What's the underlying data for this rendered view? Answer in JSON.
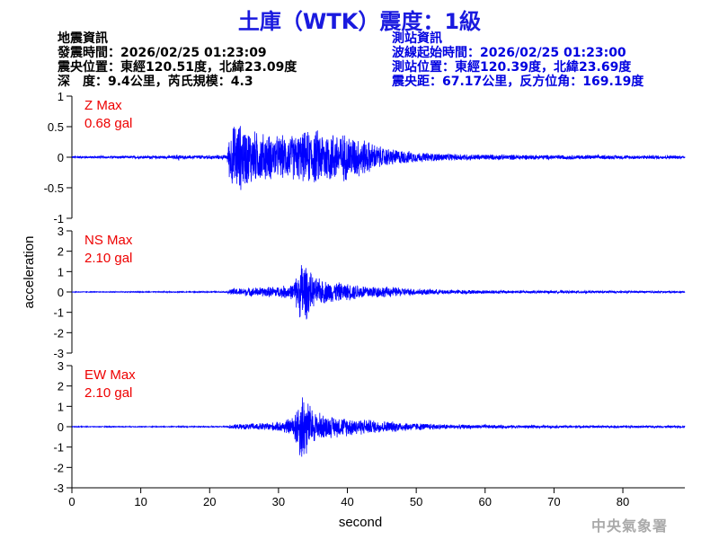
{
  "header": {
    "title": "土庫（WTK）震度：1級"
  },
  "event_info": {
    "heading": "地震資訊",
    "time": "發震時間：2026/02/25 01:23:09",
    "epicenter": "震央位置：東經120.51度，北緯23.09度",
    "depth_magnitude": "深　度：9.4公里，芮氏規模：4.3"
  },
  "station_info": {
    "heading": "測站資訊",
    "wave_start": "波線起始時間：2026/02/25 01:23:00",
    "location": "測站位置：東經120.39度，北緯23.69度",
    "distance": "震央距：67.17公里，反方位角：169.19度"
  },
  "credit": "中央氣象署",
  "colors": {
    "trace": "#0000ff",
    "max_label": "#e00000",
    "title": "#1a1adf"
  },
  "chart_data": {
    "type": "line",
    "xlabel": "second",
    "ylabel": "acceleration",
    "xlim": [
      0,
      89
    ],
    "x_ticks": [
      "0",
      "10",
      "20",
      "30",
      "40",
      "50",
      "60",
      "70",
      "80"
    ],
    "panels": [
      {
        "name": "Z",
        "max_label": "Z Max",
        "max_value": "0.68 gal",
        "ylim": [
          -1,
          1
        ],
        "y_ticks": [
          "1",
          "0.5",
          "0",
          "-0.5",
          "-1"
        ],
        "envelope": [
          [
            0,
            0.02
          ],
          [
            15,
            0.03
          ],
          [
            15.5,
            0.07
          ],
          [
            16,
            0.03
          ],
          [
            22.5,
            0.04
          ],
          [
            23,
            0.5
          ],
          [
            24,
            0.65
          ],
          [
            25,
            0.55
          ],
          [
            27,
            0.45
          ],
          [
            30,
            0.38
          ],
          [
            33,
            0.42
          ],
          [
            35,
            0.5
          ],
          [
            37,
            0.48
          ],
          [
            40,
            0.42
          ],
          [
            42,
            0.35
          ],
          [
            45,
            0.18
          ],
          [
            50,
            0.09
          ],
          [
            55,
            0.06
          ],
          [
            60,
            0.05
          ],
          [
            70,
            0.04
          ],
          [
            89,
            0.03
          ]
        ]
      },
      {
        "name": "NS",
        "max_label": "NS Max",
        "max_value": "2.10 gal",
        "ylim": [
          -3,
          3
        ],
        "y_ticks": [
          "3",
          "2",
          "1",
          "0",
          "-1",
          "-2",
          "-3"
        ],
        "envelope": [
          [
            0,
            0.02
          ],
          [
            22.5,
            0.03
          ],
          [
            23,
            0.18
          ],
          [
            25,
            0.22
          ],
          [
            30,
            0.3
          ],
          [
            32,
            0.4
          ],
          [
            33,
            1.2
          ],
          [
            33.5,
            2.0
          ],
          [
            34,
            1.5
          ],
          [
            35,
            0.8
          ],
          [
            37,
            0.6
          ],
          [
            40,
            0.45
          ],
          [
            45,
            0.3
          ],
          [
            50,
            0.18
          ],
          [
            55,
            0.12
          ],
          [
            60,
            0.1
          ],
          [
            70,
            0.07
          ],
          [
            89,
            0.05
          ]
        ]
      },
      {
        "name": "EW",
        "max_label": "EW Max",
        "max_value": "2.10 gal",
        "ylim": [
          -3,
          3
        ],
        "y_ticks": [
          "3",
          "2",
          "1",
          "0",
          "-1",
          "-2",
          "-3"
        ],
        "envelope": [
          [
            0,
            0.02
          ],
          [
            22.5,
            0.03
          ],
          [
            23,
            0.12
          ],
          [
            25,
            0.15
          ],
          [
            30,
            0.25
          ],
          [
            32,
            0.5
          ],
          [
            33,
            1.5
          ],
          [
            33.5,
            2.1
          ],
          [
            34,
            1.6
          ],
          [
            35,
            0.9
          ],
          [
            37,
            0.6
          ],
          [
            40,
            0.5
          ],
          [
            45,
            0.32
          ],
          [
            50,
            0.2
          ],
          [
            55,
            0.12
          ],
          [
            60,
            0.1
          ],
          [
            70,
            0.07
          ],
          [
            89,
            0.05
          ]
        ]
      }
    ]
  }
}
